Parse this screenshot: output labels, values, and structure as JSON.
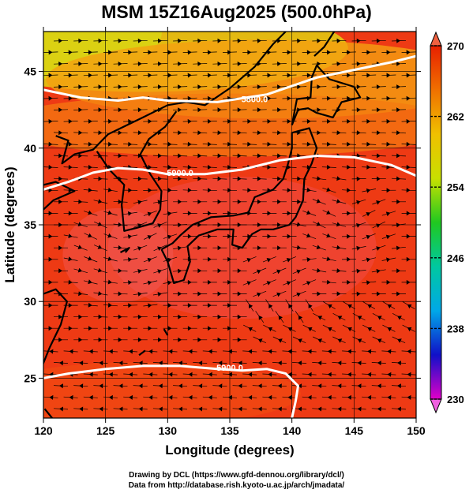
{
  "title": "MSM 15Z16Aug2025 (500.0hPa)",
  "credits": {
    "line1": "Drawing by DCL (https://www.gfd-dennou.org/library/dcl/)",
    "line2": "Data from http://database.rish.kyoto-u.ac.jp/arch/jmadata/"
  },
  "chart_data": {
    "type": "heatmap",
    "xlabel": "Longitude (degrees)",
    "ylabel": "Latitude  (degrees)",
    "xlim": [
      120,
      150
    ],
    "ylim": [
      22.4,
      47.6
    ],
    "x_ticks": [
      "120",
      "125",
      "130",
      "135",
      "140",
      "145",
      "150"
    ],
    "y_ticks": [
      "25",
      "30",
      "35",
      "40",
      "45"
    ],
    "colorbar": {
      "range": [
        230,
        270
      ],
      "ticks": [
        "230",
        "238",
        "246",
        "254",
        "262",
        "270"
      ],
      "colormap": [
        "#e000c8",
        "#1010c8",
        "#00a8e8",
        "#00c8a0",
        "#20c820",
        "#c8e000",
        "#f0c000",
        "#f07000",
        "#e82000"
      ],
      "extend": "both"
    },
    "contours": [
      {
        "label": "5800.0",
        "points": [
          [
            120.0,
            43.8
          ],
          [
            123,
            43.3
          ],
          [
            126,
            43.1
          ],
          [
            128,
            43.3
          ],
          [
            130,
            43.1
          ],
          [
            134,
            43.0
          ],
          [
            138,
            43.5
          ],
          [
            142,
            44.6
          ],
          [
            145,
            45.1
          ],
          [
            148,
            45.6
          ],
          [
            150,
            46.0
          ]
        ]
      },
      {
        "label": "5900.0",
        "points": [
          [
            120.0,
            37.3
          ],
          [
            122,
            37.8
          ],
          [
            124,
            38.4
          ],
          [
            126,
            38.7
          ],
          [
            128,
            38.6
          ],
          [
            130,
            38.3
          ],
          [
            133,
            38.3
          ],
          [
            136,
            38.6
          ],
          [
            139,
            39.2
          ],
          [
            142,
            39.5
          ],
          [
            145,
            39.4
          ],
          [
            148,
            38.9
          ],
          [
            150,
            38.2
          ]
        ]
      },
      {
        "label": "5900.0",
        "points": [
          [
            120.0,
            25.0
          ],
          [
            122,
            25.3
          ],
          [
            125,
            25.6
          ],
          [
            128,
            25.8
          ],
          [
            131,
            25.8
          ],
          [
            134,
            25.6
          ],
          [
            136,
            25.5
          ],
          [
            138,
            25.6
          ],
          [
            139.5,
            25.3
          ],
          [
            140.5,
            24.5
          ],
          [
            140.3,
            23.5
          ],
          [
            140.0,
            22.4
          ]
        ]
      }
    ],
    "contour_labels_at": [
      [
        137,
        43.2
      ],
      [
        131,
        38.4
      ],
      [
        135,
        25.7
      ]
    ],
    "colors": {
      "contour": "#ffffff",
      "coast": "#000000",
      "streamline": "#000000",
      "grid": "#000000"
    }
  }
}
